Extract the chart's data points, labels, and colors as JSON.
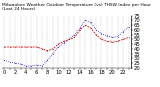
{
  "title": "Milwaukee Weather Outdoor Temperature (vs) THSW Index per Hour (Last 24 Hours)",
  "hours": [
    0,
    1,
    2,
    3,
    4,
    5,
    6,
    7,
    8,
    9,
    10,
    11,
    12,
    13,
    14,
    15,
    16,
    17,
    18,
    19,
    20,
    21,
    22,
    23
  ],
  "temp": [
    42,
    42,
    42,
    42,
    42,
    42,
    42,
    40,
    38,
    40,
    45,
    48,
    50,
    52,
    60,
    65,
    62,
    55,
    50,
    48,
    47,
    48,
    50,
    52
  ],
  "thsw": [
    28,
    26,
    25,
    24,
    22,
    22,
    23,
    22,
    28,
    35,
    42,
    46,
    50,
    55,
    62,
    70,
    68,
    60,
    56,
    54,
    52,
    53,
    58,
    63
  ],
  "temp_color": "#cc0000",
  "thsw_color": "#0000cc",
  "bg_color": "#ffffff",
  "ylim_min": 20,
  "ylim_max": 75,
  "ytick_labels": [
    "7",
    "6",
    "5",
    "4",
    "3",
    "2",
    "1"
  ],
  "grid_color": "#999999",
  "tick_fontsize": 3.8,
  "title_fontsize": 3.2,
  "line_width": 0.55,
  "marker_size": 1.0
}
